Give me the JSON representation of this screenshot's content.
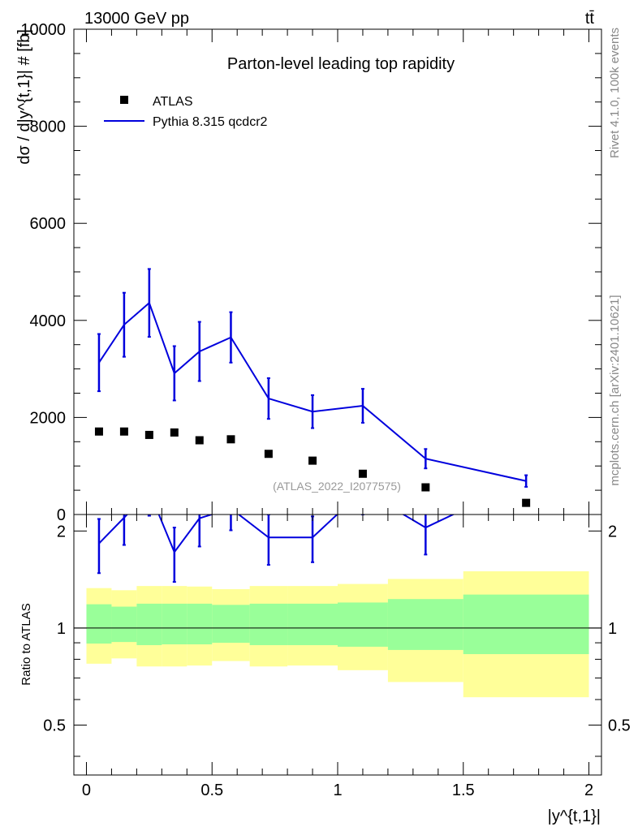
{
  "header": {
    "energy_label": "13000 GeV pp",
    "process_label": "tt̄"
  },
  "side_labels": {
    "rivet": "Rivet 4.1.0,  100k events",
    "mcplots": "mcplots.cern.ch [arXiv:2401.10621]"
  },
  "chart_data": [
    {
      "type": "scatter",
      "title": "Parton-level leading top rapidity",
      "ylabel": "dσ / d|y^{t,1}| # [fb]",
      "xlim": [
        -0.05,
        2.05
      ],
      "ylim": [
        0,
        10000
      ],
      "yticks": [
        0,
        2000,
        4000,
        6000,
        8000,
        10000
      ],
      "ytick_labels": [
        "0",
        "2000",
        "4000",
        "6000",
        "8000",
        "10000"
      ],
      "watermark": "(ATLAS_2022_I2077575)",
      "legend": {
        "position": "top-left",
        "entries": [
          "ATLAS",
          "Pythia 8.315 qcdcr2"
        ]
      },
      "bins": [
        [
          0,
          0.1
        ],
        [
          0.1,
          0.2
        ],
        [
          0.2,
          0.3
        ],
        [
          0.3,
          0.4
        ],
        [
          0.4,
          0.5
        ],
        [
          0.5,
          0.65
        ],
        [
          0.65,
          0.8
        ],
        [
          0.8,
          1.0
        ],
        [
          1.0,
          1.2
        ],
        [
          1.2,
          1.5
        ],
        [
          1.5,
          2.0
        ]
      ],
      "series": [
        {
          "name": "ATLAS",
          "color": "#000000",
          "x": [
            0.05,
            0.15,
            0.25,
            0.35,
            0.45,
            0.575,
            0.725,
            0.9,
            1.1,
            1.35,
            1.75
          ],
          "values": [
            1710,
            1710,
            1640,
            1690,
            1530,
            1550,
            1250,
            1110,
            840,
            560,
            240
          ]
        },
        {
          "name": "Pythia 8.315 qcdcr2",
          "color": "#0000dd",
          "x": [
            0.05,
            0.15,
            0.25,
            0.35,
            0.45,
            0.575,
            0.725,
            0.9,
            1.1,
            1.35,
            1.75
          ],
          "values": [
            3130,
            3910,
            4360,
            2910,
            3360,
            3650,
            2390,
            2120,
            2240,
            1150,
            690
          ],
          "errors": [
            590,
            660,
            700,
            560,
            610,
            520,
            420,
            340,
            350,
            200,
            120
          ]
        }
      ]
    },
    {
      "type": "line",
      "ylabel": "Ratio to ATLAS",
      "xlabel": "|y^{t,1}|",
      "xlim": [
        -0.05,
        2.05
      ],
      "ylim": [
        0.35,
        2.25
      ],
      "xticks": [
        0,
        0.5,
        1,
        1.5,
        2
      ],
      "xtick_labels": [
        "0",
        "0.5",
        "1",
        "1.5",
        "2"
      ],
      "yticks": [
        0.5,
        1,
        2
      ],
      "ytick_labels": [
        "0.5",
        "1",
        "2"
      ],
      "reference": 1,
      "band_colors": {
        "inner": "#99ff99",
        "outer": "#ffff99"
      },
      "bins": [
        [
          0,
          0.1
        ],
        [
          0.1,
          0.2
        ],
        [
          0.2,
          0.3
        ],
        [
          0.3,
          0.4
        ],
        [
          0.4,
          0.5
        ],
        [
          0.5,
          0.65
        ],
        [
          0.65,
          0.8
        ],
        [
          0.8,
          1.0
        ],
        [
          1.0,
          1.2
        ],
        [
          1.2,
          1.5
        ],
        [
          1.5,
          2.0
        ]
      ],
      "bands": {
        "inner_low": [
          0.895,
          0.905,
          0.885,
          0.89,
          0.89,
          0.9,
          0.885,
          0.885,
          0.875,
          0.855,
          0.83
        ],
        "inner_high": [
          1.185,
          1.165,
          1.19,
          1.19,
          1.19,
          1.18,
          1.19,
          1.19,
          1.2,
          1.23,
          1.27
        ],
        "outer_low": [
          0.775,
          0.805,
          0.76,
          0.76,
          0.765,
          0.79,
          0.76,
          0.765,
          0.74,
          0.68,
          0.61
        ],
        "outer_high": [
          1.33,
          1.31,
          1.35,
          1.35,
          1.345,
          1.32,
          1.35,
          1.35,
          1.37,
          1.42,
          1.5
        ]
      },
      "series": [
        {
          "name": "Pythia 8.315 qcdcr2",
          "color": "#0000dd",
          "x": [
            0.05,
            0.15,
            0.25,
            0.35,
            0.45,
            0.575,
            0.725,
            0.9,
            1.1,
            1.35,
            1.75
          ],
          "values": [
            1.83,
            2.2,
            2.66,
            1.72,
            2.19,
            2.35,
            1.91,
            1.91,
            2.67,
            2.05,
            2.88
          ],
          "errors": [
            0.35,
            0.39,
            0.43,
            0.33,
            0.4,
            0.34,
            0.34,
            0.31,
            0.42,
            0.36,
            0.5
          ]
        }
      ]
    }
  ]
}
